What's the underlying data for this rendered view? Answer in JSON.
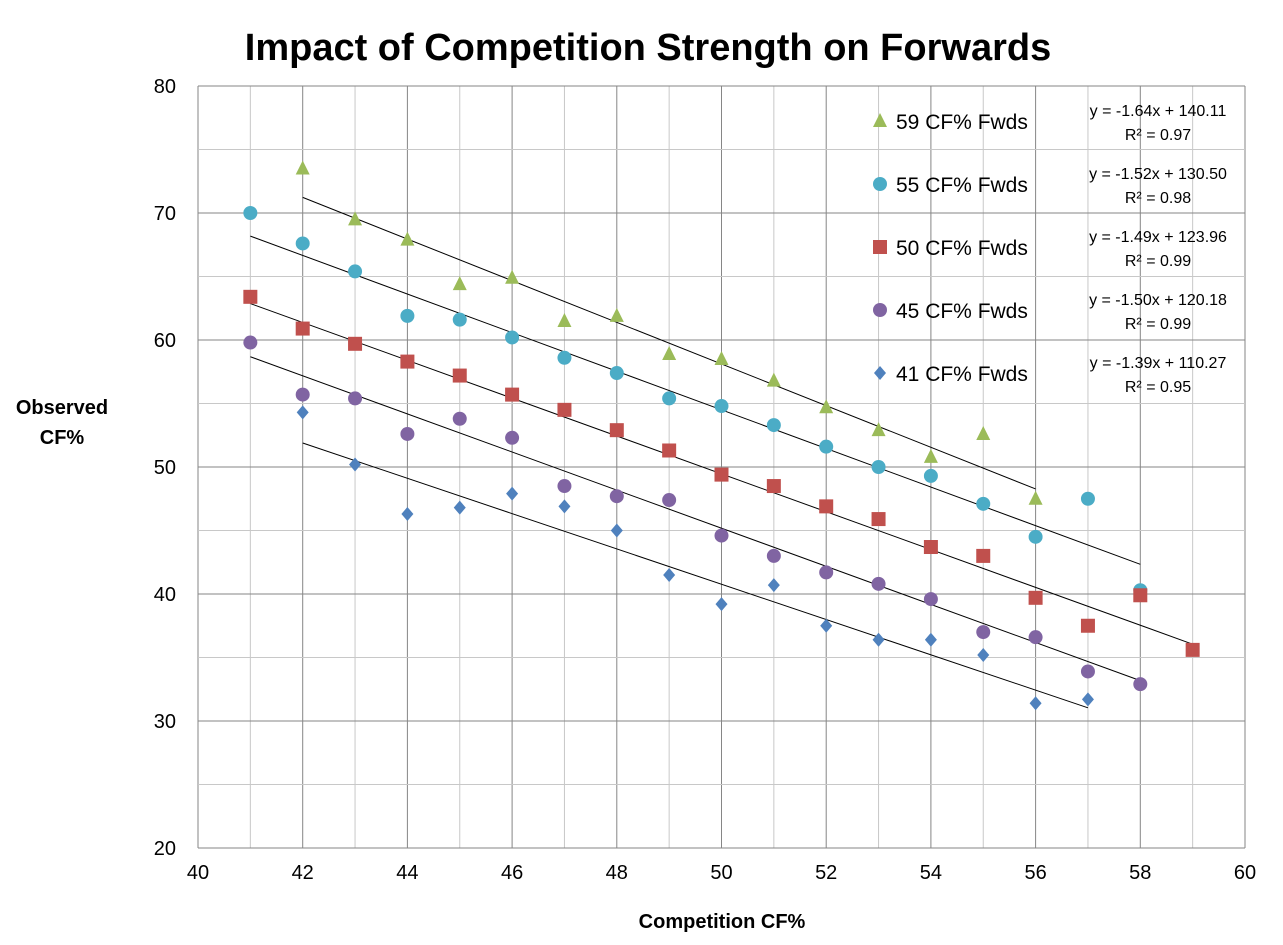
{
  "chart_data": {
    "type": "scatter",
    "title": "Impact of Competition Strength on Forwards",
    "xlabel": "Competition CF%",
    "ylabel": [
      "Observed",
      "CF%"
    ],
    "xlim": [
      40,
      60
    ],
    "ylim": [
      20,
      80
    ],
    "xticks": [
      40,
      42,
      44,
      46,
      48,
      50,
      52,
      54,
      56,
      58,
      60
    ],
    "yticks": [
      20,
      30,
      40,
      50,
      60,
      70,
      80
    ],
    "grid": true,
    "legend_position": "top-right",
    "series": [
      {
        "name": "59 CF% Fwds",
        "marker": "triangle",
        "color": "#9BBB59",
        "x": [
          42,
          43,
          44,
          45,
          46,
          47,
          48,
          49,
          50,
          51,
          52,
          53,
          54,
          55,
          56
        ],
        "y": [
          73.5,
          69.5,
          67.9,
          64.4,
          64.9,
          61.5,
          61.9,
          58.9,
          58.5,
          56.8,
          54.7,
          52.9,
          50.8,
          52.6,
          47.5
        ],
        "trend": {
          "slope": -1.64,
          "intercept": 140.11,
          "x_range": [
            42,
            56
          ],
          "equation": "y = -1.64x + 140.11",
          "r2": "R² = 0.97"
        }
      },
      {
        "name": "55 CF% Fwds",
        "marker": "circle",
        "color": "#4BACC6",
        "x": [
          41,
          42,
          43,
          44,
          45,
          46,
          47,
          48,
          49,
          50,
          51,
          52,
          53,
          54,
          55,
          56,
          57,
          58
        ],
        "y": [
          70.0,
          67.6,
          65.4,
          61.9,
          61.6,
          60.2,
          58.6,
          57.4,
          55.4,
          54.8,
          53.3,
          51.6,
          50.0,
          49.3,
          47.1,
          44.5,
          47.5,
          40.3
        ],
        "trend": {
          "slope": -1.52,
          "intercept": 130.5,
          "x_range": [
            41,
            58
          ],
          "equation": "y = -1.52x + 130.50",
          "r2": "R² = 0.98"
        }
      },
      {
        "name": "50 CF% Fwds",
        "marker": "square",
        "color": "#C0504D",
        "x": [
          41,
          42,
          43,
          44,
          45,
          46,
          47,
          48,
          49,
          50,
          51,
          52,
          53,
          54,
          55,
          56,
          57,
          58,
          59
        ],
        "y": [
          63.4,
          60.9,
          59.7,
          58.3,
          57.2,
          55.7,
          54.5,
          52.9,
          51.3,
          49.4,
          48.5,
          46.9,
          45.9,
          43.7,
          43.0,
          39.7,
          37.5,
          39.9,
          35.6
        ],
        "trend": {
          "slope": -1.49,
          "intercept": 123.96,
          "x_range": [
            41,
            59
          ],
          "equation": "y = -1.49x + 123.96",
          "r2": "R² = 0.99"
        }
      },
      {
        "name": "45 CF% Fwds",
        "marker": "circle",
        "color": "#8064A2",
        "x": [
          41,
          42,
          43,
          44,
          45,
          46,
          47,
          48,
          49,
          50,
          51,
          52,
          53,
          54,
          55,
          56,
          57,
          58
        ],
        "y": [
          59.8,
          55.7,
          55.4,
          52.6,
          53.8,
          52.3,
          48.5,
          47.7,
          47.4,
          44.6,
          43.0,
          41.7,
          40.8,
          39.6,
          37.0,
          36.6,
          33.9,
          32.9
        ],
        "trend": {
          "slope": -1.5,
          "intercept": 120.18,
          "x_range": [
            41,
            58
          ],
          "equation": "y = -1.50x + 120.18",
          "r2": "R² = 0.99"
        }
      },
      {
        "name": "41 CF% Fwds",
        "marker": "diamond",
        "color": "#4F81BD",
        "x": [
          42,
          43,
          44,
          45,
          46,
          47,
          48,
          49,
          50,
          51,
          52,
          53,
          54,
          55,
          56,
          57
        ],
        "y": [
          54.3,
          50.2,
          46.3,
          46.8,
          47.9,
          46.9,
          45.0,
          41.5,
          39.2,
          40.7,
          37.5,
          36.4,
          36.4,
          35.2,
          31.4,
          31.7
        ],
        "trend": {
          "slope": -1.39,
          "intercept": 110.27,
          "x_range": [
            42,
            57
          ],
          "equation": "y = -1.39x + 110.27",
          "r2": "R² = 0.95"
        }
      }
    ]
  }
}
